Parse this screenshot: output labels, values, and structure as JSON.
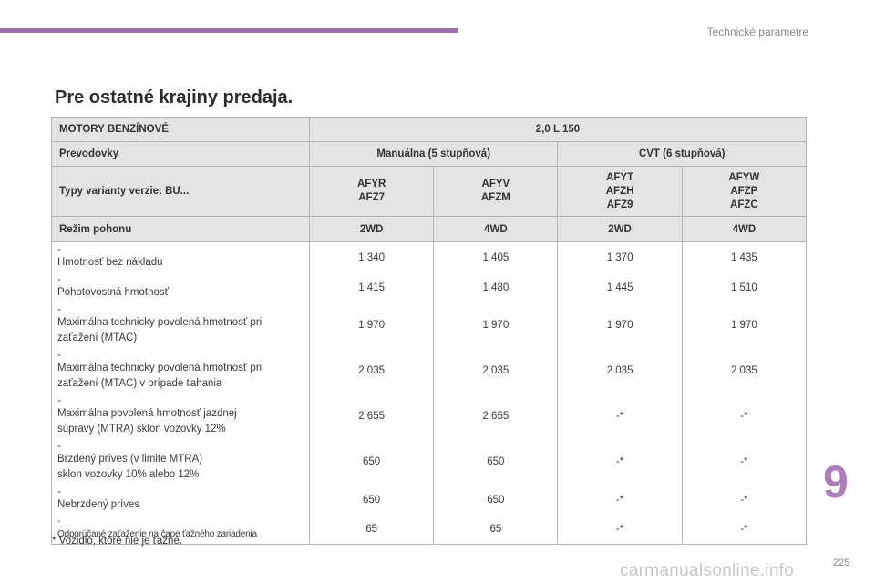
{
  "header": {
    "title": "Technické parametre"
  },
  "heading": "Pre ostatné krajiny predaja.",
  "table": {
    "engine_label": "MOTORY BENZÍNOVÉ",
    "engine_value": "2,0 L 150",
    "gearbox_label": "Prevodovky",
    "gearbox_manual": "Manuálna (5 stupňová)",
    "gearbox_cvt": "CVT (6 stupňová)",
    "variants_label": "Typy varianty verzie: BU...",
    "variants": [
      [
        "AFYR",
        "AFZ7"
      ],
      [
        "AFYV",
        "AFZM"
      ],
      [
        "AFYT",
        "AFZH",
        "AFZ9"
      ],
      [
        "AFYW",
        "AFZP",
        "AFZC"
      ]
    ],
    "drive_label": "Režim pohonu",
    "drive": [
      "2WD",
      "4WD",
      "2WD",
      "4WD"
    ],
    "rows": [
      {
        "dash": "-",
        "line1": "Hmotnosť bez nákladu",
        "line2": "",
        "values": [
          "1 340",
          "1 405",
          "1 370",
          "1 435"
        ]
      },
      {
        "dash": "-",
        "line1": "Pohotovostná hmotnosť",
        "line2": "",
        "values": [
          "1 415",
          "1 480",
          "1 445",
          "1 510"
        ]
      },
      {
        "dash": "-",
        "line1": "Maximálna technicky povolená hmotnosť pri",
        "line2": "zaťažení (MTAC)",
        "values": [
          "1 970",
          "1 970",
          "1 970",
          "1 970"
        ]
      },
      {
        "dash": "-",
        "line1": "Maximálna technicky povolená hmotnosť pri",
        "line2": "zaťažení (MTAC) v prípade ťahania",
        "values": [
          "2 035",
          "2 035",
          "2 035",
          "2 035"
        ]
      },
      {
        "dash": "-",
        "line1": "Maximálna povolená hmotnosť jazdnej",
        "line2": "súpravy (MTRA) sklon vozovky 12%",
        "values": [
          "2 655",
          "2 655",
          "-*",
          "-*"
        ]
      },
      {
        "dash": "-",
        "line1": "Brzdený príves (v limite MTRA)",
        "line2": "sklon vozovky 10% alebo 12%",
        "values": [
          "650",
          "650",
          "-*",
          "-*"
        ]
      },
      {
        "dash": "-",
        "line1": "Nebrzdený príves",
        "line2": "",
        "values": [
          "650",
          "650",
          "-*",
          "-*"
        ]
      },
      {
        "dash": "-",
        "line1": "Odporúčané zaťaženie na čape ťažného zariadenia",
        "line2": "",
        "values": [
          "65",
          "65",
          "-*",
          "-*"
        ]
      }
    ]
  },
  "footnote": "* Vozidlo, ktoré nie je ťažné.",
  "chapter_number": "9",
  "page_number": "225",
  "watermark": "carmanualsonline.info",
  "colors": {
    "accent": "#a56bb0",
    "header_bg": "#e4e4e4",
    "border": "#b4b4b4"
  }
}
